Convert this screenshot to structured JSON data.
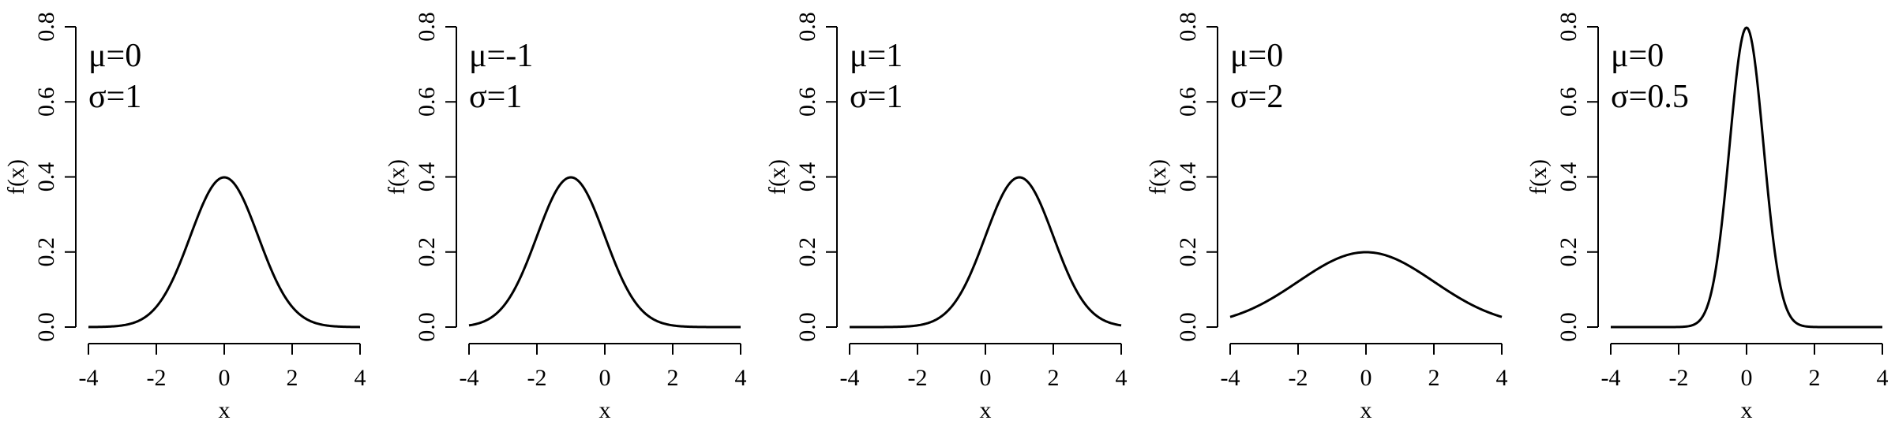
{
  "chart_data": [
    {
      "type": "line",
      "xlabel": "x",
      "ylabel": "f(x)",
      "xlim": [
        -4,
        4
      ],
      "ylim": [
        0,
        0.8
      ],
      "xticks": [
        -4,
        -2,
        0,
        2,
        4
      ],
      "xtick_labels": [
        "-4",
        "-2",
        "0",
        "2",
        "4"
      ],
      "yticks": [
        0,
        0.2,
        0.4,
        0.6,
        0.8
      ],
      "ytick_labels": [
        "0.0",
        "0.2",
        "0.4",
        "0.6",
        "0.8"
      ],
      "grid": false,
      "annotation_lines": [
        "μ=0",
        "σ=1"
      ],
      "params": {
        "mu": 0,
        "sigma": 1
      },
      "x": [
        -4,
        -3,
        -2,
        -1,
        0,
        1,
        2,
        3,
        4
      ],
      "values": [
        0.0001,
        0.0044,
        0.054,
        0.242,
        0.399,
        0.242,
        0.054,
        0.0044,
        0.0001
      ]
    },
    {
      "type": "line",
      "xlabel": "x",
      "ylabel": "f(x)",
      "xlim": [
        -4,
        4
      ],
      "ylim": [
        0,
        0.8
      ],
      "xticks": [
        -4,
        -2,
        0,
        2,
        4
      ],
      "xtick_labels": [
        "-4",
        "-2",
        "0",
        "2",
        "4"
      ],
      "yticks": [
        0,
        0.2,
        0.4,
        0.6,
        0.8
      ],
      "ytick_labels": [
        "0.0",
        "0.2",
        "0.4",
        "0.6",
        "0.8"
      ],
      "grid": false,
      "annotation_lines": [
        "μ=-1",
        "σ=1"
      ],
      "params": {
        "mu": -1,
        "sigma": 1
      },
      "x": [
        -4,
        -3,
        -2,
        -1,
        0,
        1,
        2,
        3,
        4
      ],
      "values": [
        0.0044,
        0.054,
        0.242,
        0.399,
        0.242,
        0.054,
        0.0044,
        0.0001,
        0.0
      ]
    },
    {
      "type": "line",
      "xlabel": "x",
      "ylabel": "f(x)",
      "xlim": [
        -4,
        4
      ],
      "ylim": [
        0,
        0.8
      ],
      "xticks": [
        -4,
        -2,
        0,
        2,
        4
      ],
      "xtick_labels": [
        "-4",
        "-2",
        "0",
        "2",
        "4"
      ],
      "yticks": [
        0,
        0.2,
        0.4,
        0.6,
        0.8
      ],
      "ytick_labels": [
        "0.0",
        "0.2",
        "0.4",
        "0.6",
        "0.8"
      ],
      "grid": false,
      "annotation_lines": [
        "μ=1",
        "σ=1"
      ],
      "params": {
        "mu": 1,
        "sigma": 1
      },
      "x": [
        -4,
        -3,
        -2,
        -1,
        0,
        1,
        2,
        3,
        4
      ],
      "values": [
        0.0,
        0.0001,
        0.0044,
        0.054,
        0.242,
        0.399,
        0.242,
        0.054,
        0.0044
      ]
    },
    {
      "type": "line",
      "xlabel": "x",
      "ylabel": "f(x)",
      "xlim": [
        -4,
        4
      ],
      "ylim": [
        0,
        0.8
      ],
      "xticks": [
        -4,
        -2,
        0,
        2,
        4
      ],
      "xtick_labels": [
        "-4",
        "-2",
        "0",
        "2",
        "4"
      ],
      "yticks": [
        0,
        0.2,
        0.4,
        0.6,
        0.8
      ],
      "ytick_labels": [
        "0.0",
        "0.2",
        "0.4",
        "0.6",
        "0.8"
      ],
      "grid": false,
      "annotation_lines": [
        "μ=0",
        "σ=2"
      ],
      "params": {
        "mu": 0,
        "sigma": 2
      },
      "x": [
        -4,
        -3,
        -2,
        -1,
        0,
        1,
        2,
        3,
        4
      ],
      "values": [
        0.027,
        0.065,
        0.121,
        0.176,
        0.199,
        0.176,
        0.121,
        0.065,
        0.027
      ]
    },
    {
      "type": "line",
      "xlabel": "x",
      "ylabel": "f(x)",
      "xlim": [
        -4,
        4
      ],
      "ylim": [
        0,
        0.8
      ],
      "xticks": [
        -4,
        -2,
        0,
        2,
        4
      ],
      "xtick_labels": [
        "-4",
        "-2",
        "0",
        "2",
        "4"
      ],
      "yticks": [
        0,
        0.2,
        0.4,
        0.6,
        0.8
      ],
      "ytick_labels": [
        "0.0",
        "0.2",
        "0.4",
        "0.6",
        "0.8"
      ],
      "grid": false,
      "annotation_lines": [
        "μ=0",
        "σ=0.5"
      ],
      "params": {
        "mu": 0,
        "sigma": 0.5
      },
      "x": [
        -4,
        -3,
        -2,
        -1,
        -0.5,
        0,
        0.5,
        1,
        2,
        3,
        4
      ],
      "values": [
        0.0,
        0.0,
        0.0003,
        0.108,
        0.484,
        0.798,
        0.484,
        0.108,
        0.0003,
        0.0,
        0.0
      ]
    }
  ]
}
